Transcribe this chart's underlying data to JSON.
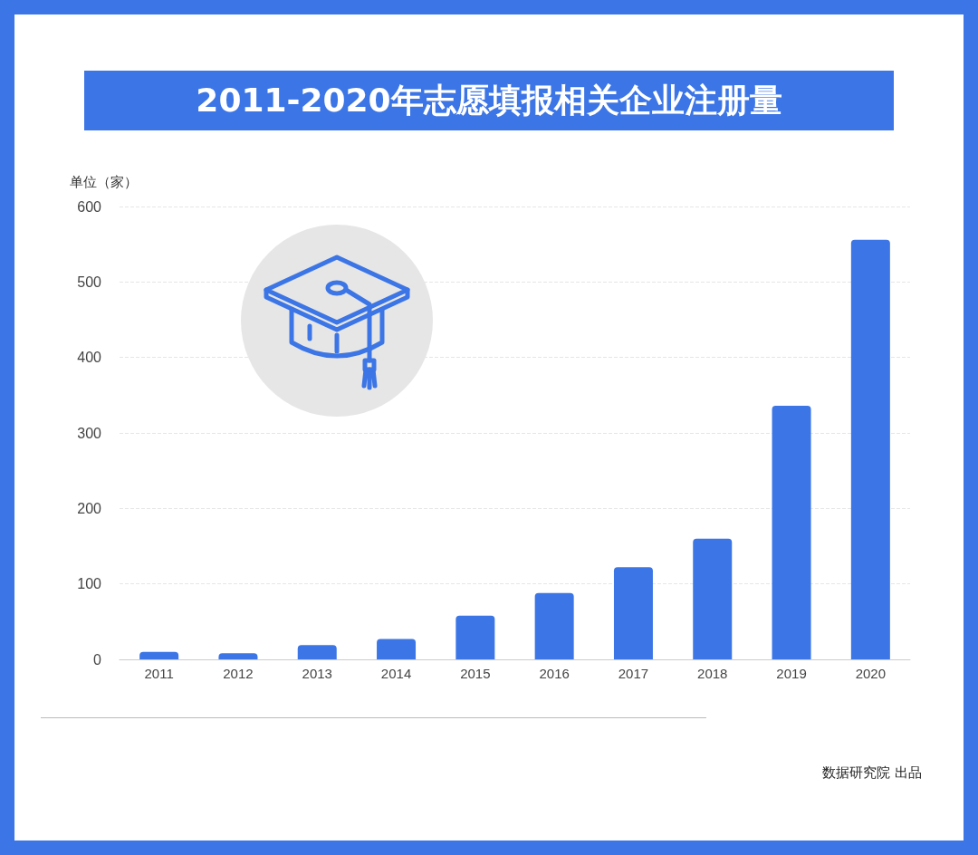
{
  "chart_data": {
    "type": "bar",
    "title": "2011-2020年志愿填报相关企业注册量",
    "ylabel": "单位（家）",
    "categories": [
      "2011",
      "2012",
      "2013",
      "2014",
      "2015",
      "2016",
      "2017",
      "2018",
      "2019",
      "2020"
    ],
    "values": [
      10,
      8,
      19,
      27,
      58,
      88,
      122,
      160,
      336,
      556
    ],
    "color": "#3b75e6",
    "ylim": [
      0,
      600
    ],
    "yticks": [
      0,
      100,
      200,
      300,
      400,
      500,
      600
    ],
    "grid": "y",
    "annotations": [
      "数据研究院 出品"
    ]
  }
}
